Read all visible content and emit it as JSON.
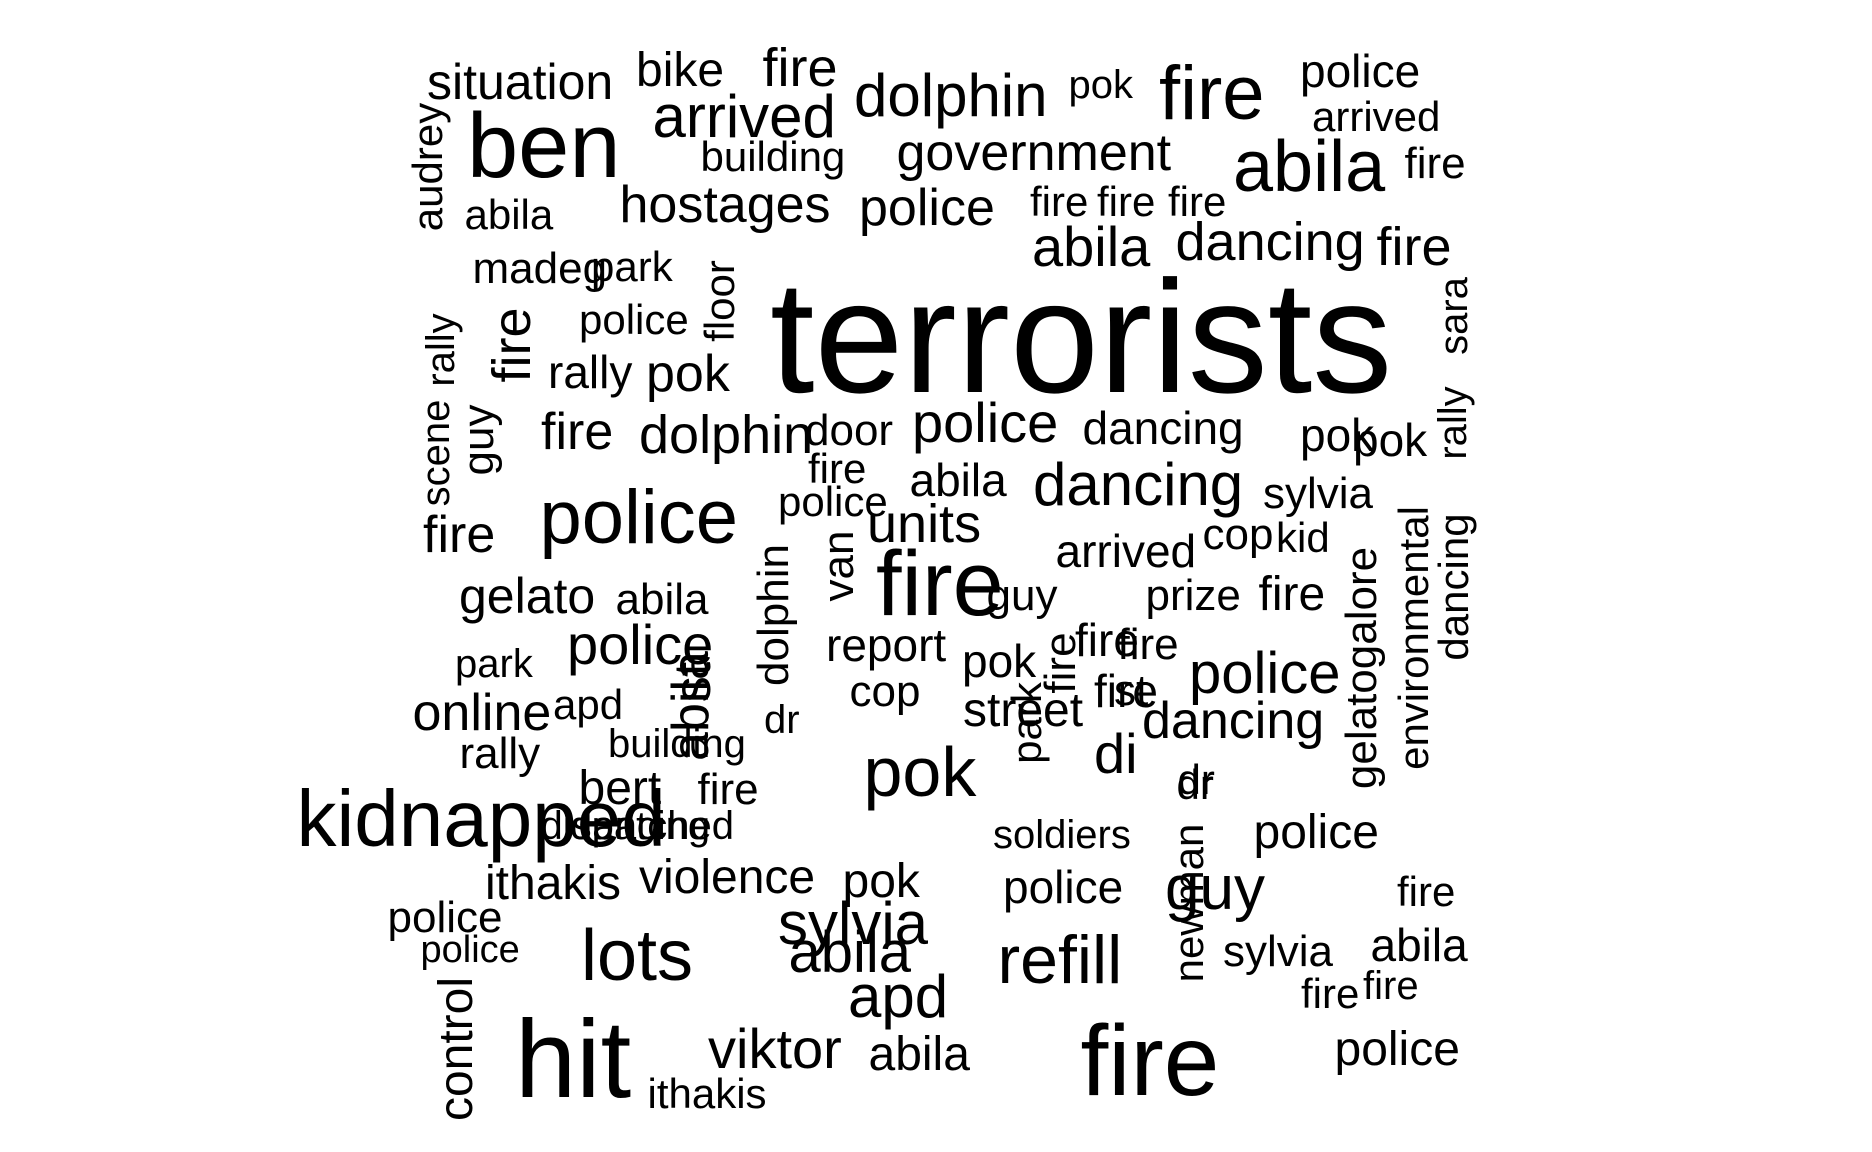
{
  "colors": {
    "background": "#ffffff",
    "text": "#000000"
  },
  "words": [
    "situation",
    "bike",
    "fire",
    "dolphin",
    "pok",
    "fire",
    "police",
    "arrived",
    "arrived",
    "ben",
    "building",
    "government",
    "abila",
    "fire",
    "audrey",
    "abila",
    "hostages",
    "police",
    "fire",
    "fire",
    "fire",
    "abila",
    "dancing",
    "fire",
    "madeg",
    "park",
    "floor",
    "terrorists",
    "sara",
    "police",
    "rally",
    "fire",
    "rally",
    "pok",
    "scene",
    "guy",
    "rally",
    "fire",
    "dolphin",
    "door",
    "police",
    "dancing",
    "pok",
    "pok",
    "fire",
    "police",
    "abila",
    "dancing",
    "sylvia",
    "fire",
    "police",
    "units",
    "cop",
    "kid",
    "environmental",
    "dancing",
    "arrived",
    "dolphin",
    "van",
    "fire",
    "gelatogalore",
    "gelato",
    "abila",
    "guy",
    "prize",
    "fire",
    "report",
    "st",
    "fire",
    "police",
    "police",
    "park",
    "pok",
    "fire",
    "fire",
    "st",
    "abila",
    "cop",
    "fire",
    "online",
    "apd",
    "dr",
    "street",
    "park",
    "dancing",
    "rally",
    "building",
    "pok",
    "di",
    "bert",
    "dr",
    "fire",
    "dr",
    "dispatched",
    "kidnapped",
    "dancing",
    "soldiers",
    "newman",
    "police",
    "ithakis",
    "violence",
    "pok",
    "police",
    "guy",
    "fire",
    "police",
    "sylvia",
    "sylvia",
    "abila",
    "police",
    "lots",
    "abila",
    "refill",
    "apd",
    "fire",
    "fire",
    "control",
    "hit",
    "viktor",
    "abila",
    "fire",
    "police",
    "ithakis"
  ]
}
